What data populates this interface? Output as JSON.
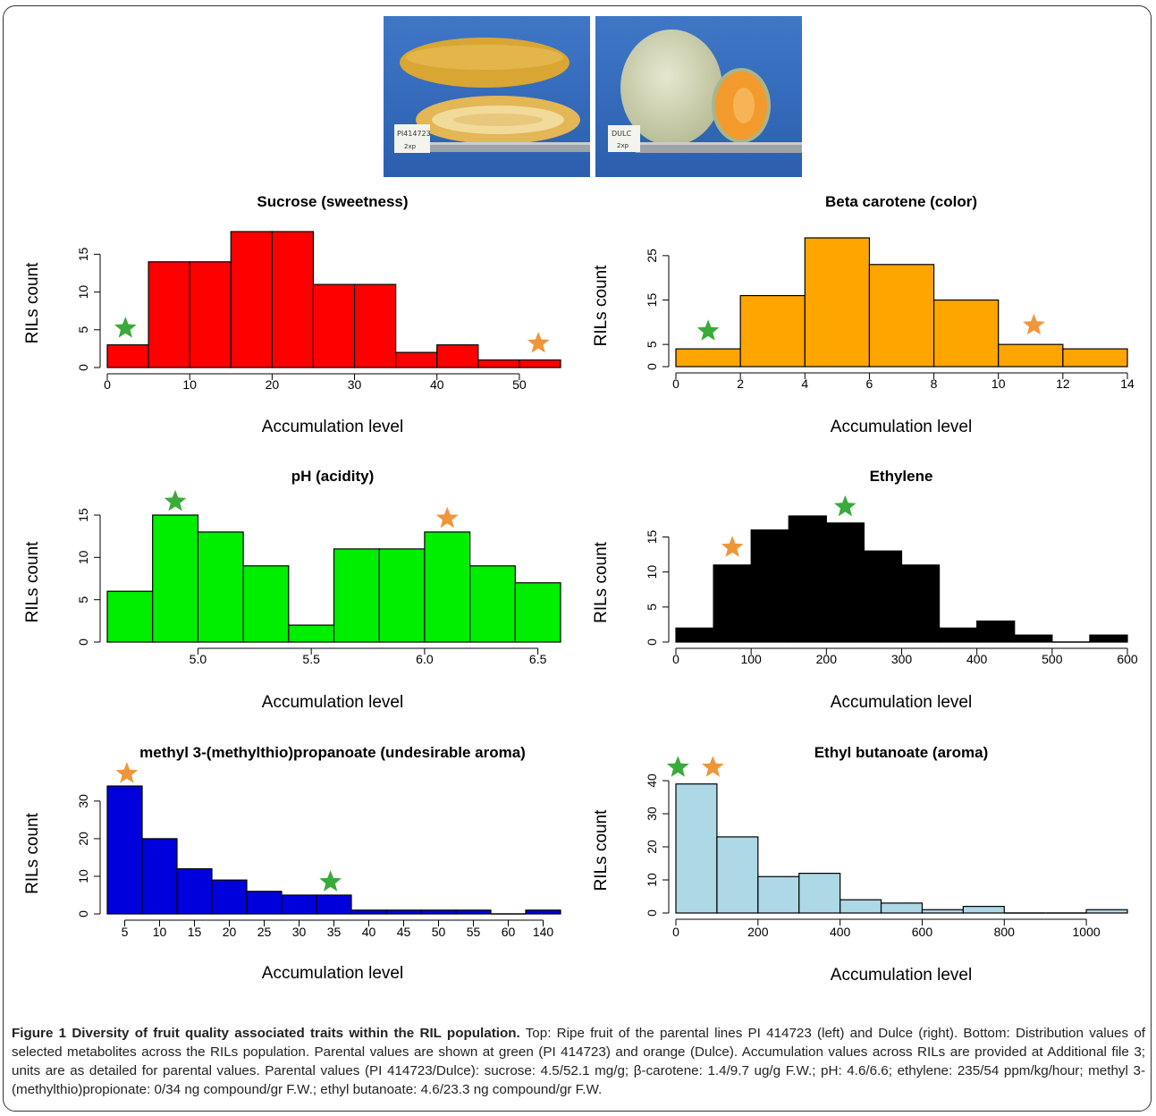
{
  "photos": {
    "left": {
      "tag_line1": "PI414723",
      "tag_line2": "2xp"
    },
    "right": {
      "tag_line1": "DULC",
      "tag_line2": "2xp"
    }
  },
  "colors": {
    "green_star": "#3aaa3a",
    "orange_star": "#f0963a"
  },
  "chart_data": [
    {
      "type": "bar",
      "title": "Sucrose (sweetness)",
      "xlabel": "Accumulation level",
      "ylabel": "RILs count",
      "bin_edges": [
        0,
        5,
        10,
        15,
        20,
        25,
        30,
        35,
        40,
        45,
        50,
        55
      ],
      "values": [
        3,
        14,
        14,
        18,
        18,
        11,
        11,
        2,
        3,
        1,
        1
      ],
      "xticks": [
        "0",
        "10",
        "20",
        "30",
        "40",
        "50"
      ],
      "xtick_values": [
        0,
        10,
        20,
        30,
        40,
        50
      ],
      "yticks": [
        "0",
        "5",
        "10",
        "15"
      ],
      "ytick_values": [
        0,
        5,
        10,
        15
      ],
      "xlim": [
        0,
        55
      ],
      "ylim": [
        0,
        18
      ],
      "bar_color": "#ff0000",
      "markers": [
        {
          "color": "green",
          "x": 2.2,
          "y": 5.2
        },
        {
          "color": "orange",
          "x": 52.3,
          "y": 3.2
        }
      ]
    },
    {
      "type": "bar",
      "title": "Beta carotene (color)",
      "xlabel": "Accumulation level",
      "ylabel": "RILs count",
      "bin_edges": [
        0,
        2,
        4,
        6,
        8,
        10,
        12,
        14
      ],
      "values": [
        4,
        16,
        29,
        23,
        15,
        5,
        4
      ],
      "xticks": [
        "0",
        "2",
        "4",
        "6",
        "8",
        "10",
        "12",
        "14"
      ],
      "xtick_values": [
        0,
        2,
        4,
        6,
        8,
        10,
        12,
        14
      ],
      "yticks": [
        "0",
        "5",
        "15",
        "25"
      ],
      "ytick_values": [
        0,
        5,
        15,
        25
      ],
      "xlim": [
        0,
        14
      ],
      "ylim": [
        0,
        29
      ],
      "bar_color": "#ffa500",
      "markers": [
        {
          "color": "green",
          "x": 1.0,
          "y": 8.0
        },
        {
          "color": "orange",
          "x": 11.1,
          "y": 9.3
        }
      ]
    },
    {
      "type": "bar",
      "title": "pH (acidity)",
      "xlabel": "Accumulation level",
      "ylabel": "RILs count",
      "bin_edges": [
        4.6,
        4.8,
        5.0,
        5.2,
        5.4,
        5.6,
        5.8,
        6.0,
        6.2,
        6.4,
        6.6
      ],
      "values": [
        6,
        15,
        13,
        9,
        2,
        11,
        11,
        13,
        9,
        7
      ],
      "xticks": [
        "5.0",
        "5.5",
        "6.0",
        "6.5"
      ],
      "xtick_values": [
        5.0,
        5.5,
        6.0,
        6.5
      ],
      "yticks": [
        "0",
        "5",
        "10",
        "15"
      ],
      "ytick_values": [
        0,
        5,
        10,
        15
      ],
      "xlim": [
        4.6,
        6.6
      ],
      "ylim": [
        0,
        15
      ],
      "bar_color": "#00ee00",
      "markers": [
        {
          "color": "green",
          "x": 4.9,
          "y": 16.6
        },
        {
          "color": "orange",
          "x": 6.1,
          "y": 14.6
        }
      ]
    },
    {
      "type": "bar",
      "title": "Ethylene",
      "xlabel": "Accumulation level",
      "ylabel": "RILs count",
      "bin_edges": [
        0,
        50,
        100,
        150,
        200,
        250,
        300,
        350,
        400,
        450,
        500,
        550,
        600
      ],
      "values": [
        2,
        11,
        16,
        18,
        17,
        13,
        11,
        2,
        3,
        1,
        0,
        1
      ],
      "xticks": [
        "0",
        "100",
        "200",
        "300",
        "400",
        "500",
        "600"
      ],
      "xtick_values": [
        0,
        100,
        200,
        300,
        400,
        500,
        600
      ],
      "yticks": [
        "0",
        "5",
        "10",
        "15"
      ],
      "ytick_values": [
        0,
        5,
        10,
        15
      ],
      "xlim": [
        0,
        600
      ],
      "ylim": [
        0,
        18
      ],
      "bar_color": "#000000",
      "markers": [
        {
          "color": "orange",
          "x": 75,
          "y": 13.5
        },
        {
          "color": "green",
          "x": 225,
          "y": 19.3
        }
      ]
    },
    {
      "type": "bar",
      "title": "methyl 3-(methylthio)propanoate (undesirable aroma)",
      "xlabel": "Accumulation level",
      "ylabel": "RILs count",
      "bin_edges": [
        2.5,
        7.5,
        12.5,
        17.5,
        22.5,
        27.5,
        32.5,
        37.5,
        42.5,
        47.5,
        52.5,
        57.5,
        62.5,
        67.5
      ],
      "values": [
        34,
        20,
        12,
        9,
        6,
        5,
        5,
        1,
        1,
        1,
        1,
        0,
        1
      ],
      "xticks": [
        "5",
        "10",
        "15",
        "20",
        "25",
        "30",
        "35",
        "40",
        "45",
        "50",
        "55",
        "60",
        "140"
      ],
      "xtick_values": [
        5,
        10,
        15,
        20,
        25,
        30,
        35,
        40,
        45,
        50,
        55,
        60,
        65
      ],
      "yticks": [
        "0",
        "10",
        "20",
        "30"
      ],
      "ytick_values": [
        0,
        10,
        20,
        30
      ],
      "xlim": [
        2.5,
        67.5
      ],
      "ylim": [
        0,
        34
      ],
      "bar_color": "#0000dd",
      "markers": [
        {
          "color": "orange",
          "x": 5.3,
          "y": 37.3
        },
        {
          "color": "green",
          "x": 34.5,
          "y": 8.5
        }
      ]
    },
    {
      "type": "bar",
      "title": "Ethyl butanoate (aroma)",
      "xlabel": "Accumulation level",
      "ylabel": "RILs count",
      "bin_edges": [
        0,
        100,
        200,
        300,
        400,
        500,
        600,
        700,
        800,
        900,
        1000,
        1100
      ],
      "values": [
        39,
        23,
        11,
        12,
        4,
        3,
        1,
        2,
        0,
        0,
        1
      ],
      "xticks": [
        "0",
        "200",
        "400",
        "600",
        "800",
        "1000"
      ],
      "xtick_values": [
        0,
        200,
        400,
        600,
        800,
        1000
      ],
      "yticks": [
        "0",
        "10",
        "20",
        "30",
        "40"
      ],
      "ytick_values": [
        0,
        10,
        20,
        30,
        40
      ],
      "xlim": [
        0,
        1100
      ],
      "ylim": [
        0,
        40
      ],
      "bar_color": "#add8e6",
      "markers": [
        {
          "color": "green",
          "x": 5,
          "y": 44
        },
        {
          "color": "orange",
          "x": 90,
          "y": 44
        }
      ]
    }
  ],
  "caption": {
    "title": "Figure 1 Diversity of fruit quality associated traits within the RIL population.",
    "body": "Top: Ripe fruit of the parental lines PI 414723 (left) and Dulce (right). Bottom: Distribution values of selected metabolites across the RILs population. Parental values are shown at green (PI 414723) and orange (Dulce). Accumulation values across RILs are provided at Additional file 3; units are as detailed for parental values. Parental values (PI 414723/Dulce): sucrose: 4.5/52.1 mg/g; β-carotene: 1.4/9.7 ug/g F.W.; pH: 4.6/6.6; ethylene: 235/54 ppm/kg/hour; methyl 3-(methylthio)propionate: 0/34 ng compound/gr F.W.; ethyl butanoate: 4.6/23.3 ng compound/gr F.W."
  }
}
